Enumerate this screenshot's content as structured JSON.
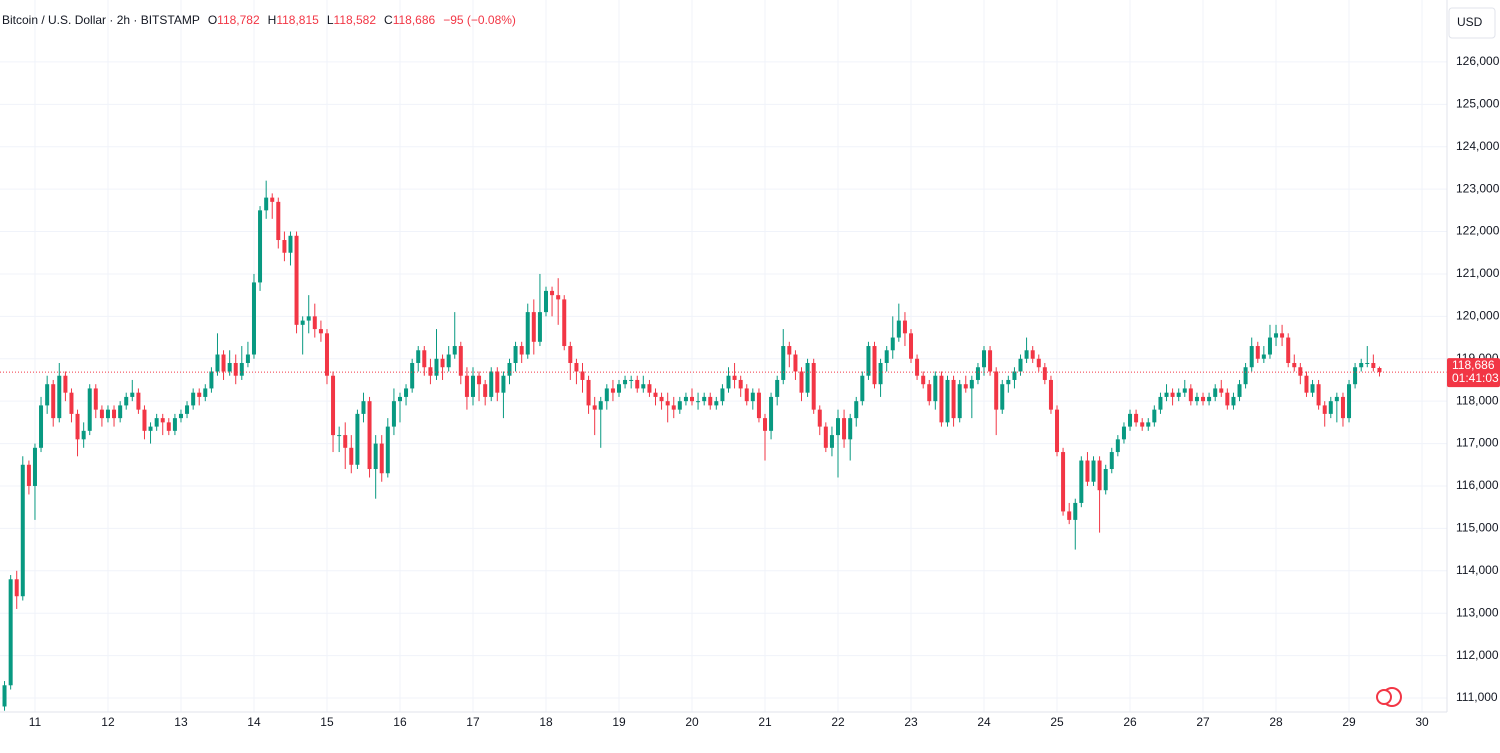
{
  "chart_data": {
    "type": "candlestick",
    "title": "Bitcoin / U.S. Dollar · 2h · BITSTAMP",
    "legend_values": [
      {
        "label": "O",
        "value": "118,782"
      },
      {
        "label": "H",
        "value": "118,815"
      },
      {
        "label": "L",
        "value": "118,582"
      },
      {
        "label": "C",
        "value": "118,686"
      }
    ],
    "change_text": "−95 (−0.08%)",
    "currency": "USD",
    "last_price": {
      "value": 118686,
      "label": "118,686",
      "countdown": "01:41:03"
    },
    "up_color": "#089981",
    "down_color": "#f23645",
    "grid": true,
    "xlim": [
      10.521,
      30.342
    ],
    "xticks": [
      11,
      12,
      13,
      14,
      15,
      16,
      17,
      18,
      19,
      20,
      21,
      22,
      23,
      24,
      25,
      26,
      27,
      28,
      29,
      30
    ],
    "ylim": [
      110670,
      127460
    ],
    "yticks": [
      {
        "value": 111000,
        "label": "111,000"
      },
      {
        "value": 112000,
        "label": "112,000"
      },
      {
        "value": 113000,
        "label": "113,000"
      },
      {
        "value": 114000,
        "label": "114,000"
      },
      {
        "value": 115000,
        "label": "115,000"
      },
      {
        "value": 116000,
        "label": "116,000"
      },
      {
        "value": 117000,
        "label": "117,000"
      },
      {
        "value": 118000,
        "label": "118,000"
      },
      {
        "value": 119000,
        "label": "119,000"
      },
      {
        "value": 120000,
        "label": "120,000"
      },
      {
        "value": 121000,
        "label": "121,000"
      },
      {
        "value": 122000,
        "label": "122,000"
      },
      {
        "value": 123000,
        "label": "123,000"
      },
      {
        "value": 124000,
        "label": "124,000"
      },
      {
        "value": 125000,
        "label": "125,000"
      },
      {
        "value": 126000,
        "label": "126,000"
      }
    ],
    "x": [
      10.583,
      10.667,
      10.75,
      10.833,
      10.917,
      11,
      11.083,
      11.167,
      11.25,
      11.333,
      11.417,
      11.5,
      11.583,
      11.667,
      11.75,
      11.833,
      11.917,
      12,
      12.083,
      12.167,
      12.25,
      12.333,
      12.417,
      12.5,
      12.583,
      12.667,
      12.75,
      12.833,
      12.917,
      13,
      13.083,
      13.167,
      13.25,
      13.333,
      13.417,
      13.5,
      13.583,
      13.667,
      13.75,
      13.833,
      13.917,
      14,
      14.083,
      14.167,
      14.25,
      14.333,
      14.417,
      14.5,
      14.583,
      14.667,
      14.75,
      14.833,
      14.917,
      15,
      15.083,
      15.167,
      15.25,
      15.333,
      15.417,
      15.5,
      15.583,
      15.667,
      15.75,
      15.833,
      15.917,
      16,
      16.083,
      16.167,
      16.25,
      16.333,
      16.417,
      16.5,
      16.583,
      16.667,
      16.75,
      16.833,
      16.917,
      17,
      17.083,
      17.167,
      17.25,
      17.333,
      17.417,
      17.5,
      17.583,
      17.667,
      17.75,
      17.833,
      17.917,
      18,
      18.083,
      18.167,
      18.25,
      18.333,
      18.417,
      18.5,
      18.583,
      18.667,
      18.75,
      18.833,
      18.917,
      19,
      19.083,
      19.167,
      19.25,
      19.333,
      19.417,
      19.5,
      19.583,
      19.667,
      19.75,
      19.833,
      19.917,
      20,
      20.083,
      20.167,
      20.25,
      20.333,
      20.417,
      20.5,
      20.583,
      20.667,
      20.75,
      20.833,
      20.917,
      21,
      21.083,
      21.167,
      21.25,
      21.333,
      21.417,
      21.5,
      21.583,
      21.667,
      21.75,
      21.833,
      21.917,
      22,
      22.083,
      22.167,
      22.25,
      22.333,
      22.417,
      22.5,
      22.583,
      22.667,
      22.75,
      22.833,
      22.917,
      23,
      23.083,
      23.167,
      23.25,
      23.333,
      23.417,
      23.5,
      23.583,
      23.667,
      23.75,
      23.833,
      23.917,
      24,
      24.083,
      24.167,
      24.25,
      24.333,
      24.417,
      24.5,
      24.583,
      24.667,
      24.75,
      24.833,
      24.917,
      25,
      25.083,
      25.167,
      25.25,
      25.333,
      25.417,
      25.5,
      25.583,
      25.667,
      25.75,
      25.833,
      25.917,
      26,
      26.083,
      26.167,
      26.25,
      26.333,
      26.417,
      26.5,
      26.583,
      26.667,
      26.75,
      26.833,
      26.917,
      27,
      27.083,
      27.167,
      27.25,
      27.333,
      27.417,
      27.5,
      27.583,
      27.667,
      27.75,
      27.833,
      27.917,
      28,
      28.083,
      28.167,
      28.25,
      28.333,
      28.417,
      28.5,
      28.583,
      28.667,
      28.75,
      28.833,
      28.917,
      29,
      29.083,
      29.167,
      29.25,
      29.333,
      29.417
    ],
    "open": [
      110800,
      111300,
      113800,
      113400,
      116500,
      116000,
      116900,
      117900,
      118400,
      117600,
      118600,
      118200,
      117700,
      117100,
      117300,
      118300,
      117800,
      117600,
      117800,
      117600,
      117900,
      118100,
      118200,
      117800,
      117300,
      117400,
      117600,
      117500,
      117300,
      117600,
      117700,
      117900,
      118200,
      118100,
      118300,
      118700,
      119100,
      118700,
      118900,
      118600,
      118900,
      119100,
      120800,
      122500,
      122800,
      122700,
      121800,
      121500,
      121900,
      119800,
      119900,
      120000,
      119700,
      119600,
      118600,
      117200,
      117200,
      116900,
      116500,
      117700,
      118000,
      116400,
      117000,
      116300,
      117400,
      118000,
      118100,
      118300,
      118900,
      119200,
      118800,
      118600,
      119000,
      118800,
      119100,
      119300,
      118600,
      118100,
      118600,
      118400,
      118100,
      118700,
      118200,
      118600,
      118900,
      119300,
      119100,
      120100,
      119400,
      120100,
      120600,
      120500,
      120400,
      119300,
      118900,
      118700,
      118500,
      117900,
      117800,
      118000,
      118300,
      118200,
      118400,
      118500,
      118500,
      118300,
      118400,
      118200,
      118100,
      118000,
      117900,
      117800,
      118000,
      118100,
      118000,
      118000,
      118100,
      117900,
      118000,
      118300,
      118600,
      118500,
      118300,
      118000,
      118200,
      117600,
      117300,
      118100,
      118500,
      119300,
      119100,
      118700,
      118200,
      118900,
      117800,
      117400,
      116900,
      117200,
      117600,
      117100,
      117600,
      118000,
      118600,
      119300,
      118400,
      118900,
      119200,
      119500,
      119900,
      119600,
      119000,
      118600,
      118400,
      118000,
      118600,
      117500,
      118500,
      117600,
      118400,
      118300,
      118500,
      118800,
      119200,
      118700,
      117800,
      118400,
      118500,
      118700,
      119000,
      119200,
      119000,
      118800,
      118500,
      117800,
      116800,
      115400,
      115200,
      115600,
      116600,
      116100,
      116600,
      115900,
      116400,
      116800,
      117100,
      117400,
      117700,
      117500,
      117400,
      117500,
      117800,
      118100,
      118200,
      118100,
      118200,
      118300,
      118000,
      118100,
      118000,
      118100,
      118300,
      118200,
      117900,
      118100,
      118400,
      118800,
      119300,
      119000,
      119100,
      119500,
      119600,
      119500,
      118900,
      118800,
      118600,
      118200,
      118400,
      117900,
      117700,
      118000,
      118100,
      117600,
      118400,
      118800,
      118900,
      118900,
      118782
    ],
    "high": [
      111400,
      113900,
      114000,
      116700,
      116600,
      117000,
      118100,
      118600,
      118500,
      118900,
      118700,
      118300,
      117800,
      117500,
      118400,
      118400,
      117900,
      117900,
      117900,
      118000,
      118200,
      118500,
      118300,
      117900,
      117500,
      117700,
      117700,
      117600,
      117700,
      117800,
      118000,
      118300,
      118300,
      118400,
      118800,
      119600,
      119200,
      119200,
      119100,
      119300,
      119400,
      121000,
      122600,
      123200,
      122900,
      122800,
      122000,
      122000,
      122000,
      120000,
      120500,
      120300,
      119900,
      119700,
      118700,
      117400,
      117500,
      117200,
      117800,
      118200,
      118100,
      117200,
      117200,
      117600,
      118300,
      118200,
      118400,
      119000,
      119300,
      119300,
      119000,
      119700,
      119100,
      119300,
      120100,
      119400,
      118800,
      118800,
      118700,
      118500,
      118800,
      118800,
      118700,
      119000,
      119400,
      119400,
      120300,
      120400,
      121000,
      120700,
      120700,
      120900,
      120500,
      119400,
      119000,
      118900,
      118600,
      118100,
      118100,
      118400,
      118500,
      118500,
      118600,
      118600,
      118600,
      118600,
      118500,
      118300,
      118200,
      118200,
      118100,
      118100,
      118200,
      118300,
      118200,
      118200,
      118200,
      118100,
      118400,
      118800,
      118900,
      118600,
      118400,
      118300,
      118300,
      117700,
      118200,
      118600,
      119700,
      119400,
      119200,
      118800,
      119000,
      119000,
      117900,
      117500,
      117400,
      117800,
      117800,
      117700,
      118100,
      118700,
      119400,
      119400,
      119000,
      119300,
      120000,
      120300,
      120100,
      119700,
      119100,
      118700,
      118500,
      118700,
      118700,
      118600,
      118600,
      118500,
      118600,
      118600,
      118900,
      119300,
      119300,
      118800,
      118500,
      118600,
      118800,
      119100,
      119500,
      119300,
      119100,
      118900,
      118600,
      117900,
      116900,
      115600,
      115700,
      116700,
      116800,
      116700,
      116700,
      116500,
      116900,
      117200,
      117500,
      117800,
      117800,
      117600,
      117600,
      117900,
      118200,
      118400,
      118300,
      118300,
      118500,
      118400,
      118200,
      118200,
      118200,
      118400,
      118500,
      118300,
      118200,
      118500,
      118900,
      119500,
      119400,
      119300,
      119800,
      119800,
      119800,
      119600,
      119100,
      118900,
      118700,
      118500,
      118500,
      118000,
      118100,
      118200,
      118200,
      118500,
      118900,
      119000,
      119300,
      119100,
      118815
    ],
    "low": [
      110700,
      111200,
      113100,
      113300,
      115800,
      115200,
      116800,
      117700,
      117400,
      117500,
      118000,
      117500,
      116700,
      116900,
      117200,
      117600,
      117400,
      117500,
      117400,
      117500,
      117800,
      118000,
      117700,
      117100,
      117000,
      117300,
      117200,
      117200,
      117200,
      117500,
      117600,
      117800,
      117900,
      118000,
      118200,
      118600,
      118500,
      118600,
      118400,
      118500,
      118800,
      119000,
      120600,
      122300,
      122300,
      121600,
      121300,
      121200,
      119600,
      119100,
      119600,
      119500,
      119400,
      118400,
      116800,
      116800,
      116400,
      116300,
      116400,
      117500,
      116200,
      115700,
      116100,
      116200,
      117200,
      117500,
      117900,
      118200,
      118700,
      118600,
      118400,
      118500,
      118500,
      118700,
      119000,
      118400,
      117800,
      117900,
      118000,
      117900,
      118000,
      118000,
      117600,
      118400,
      118700,
      118900,
      119000,
      119100,
      119300,
      120000,
      120000,
      119800,
      119200,
      118500,
      118400,
      118200,
      117700,
      117200,
      116900,
      117800,
      118000,
      118100,
      118300,
      118300,
      118200,
      118200,
      118100,
      117900,
      117800,
      117500,
      117600,
      117700,
      117900,
      117900,
      117800,
      117900,
      117800,
      117800,
      117900,
      118200,
      118300,
      118100,
      117900,
      117800,
      117500,
      116600,
      117100,
      117900,
      118400,
      118800,
      118500,
      118000,
      118100,
      117700,
      117200,
      116800,
      116700,
      116200,
      116900,
      116600,
      117400,
      117900,
      118500,
      118300,
      118100,
      118700,
      119000,
      119400,
      119300,
      118900,
      118500,
      118300,
      117900,
      117800,
      117400,
      117400,
      117400,
      117500,
      118200,
      117600,
      118400,
      118600,
      118600,
      117200,
      117700,
      118200,
      118300,
      118600,
      118900,
      118900,
      118700,
      118400,
      117700,
      116700,
      115300,
      115100,
      114500,
      115500,
      116000,
      116000,
      114900,
      115800,
      116300,
      116700,
      117000,
      117300,
      117400,
      117300,
      117300,
      117400,
      117700,
      118000,
      117900,
      118000,
      118100,
      117900,
      117900,
      117900,
      117900,
      118000,
      118100,
      117800,
      117800,
      118000,
      118300,
      118700,
      118900,
      118900,
      119000,
      119300,
      119300,
      118800,
      118700,
      118400,
      118100,
      118100,
      117800,
      117400,
      117600,
      117500,
      117400,
      117500,
      118300,
      118700,
      118800,
      118700,
      118582
    ],
    "close": [
      111300,
      113800,
      113400,
      116500,
      116000,
      116900,
      117900,
      118400,
      117600,
      118600,
      118200,
      117700,
      117100,
      117300,
      118300,
      117800,
      117600,
      117800,
      117600,
      117900,
      118100,
      118200,
      117800,
      117300,
      117400,
      117600,
      117500,
      117300,
      117600,
      117700,
      117900,
      118200,
      118100,
      118300,
      118700,
      119100,
      118700,
      118900,
      118600,
      118900,
      119100,
      120800,
      122500,
      122800,
      122700,
      121800,
      121500,
      121900,
      119800,
      119900,
      120000,
      119700,
      119600,
      118600,
      117200,
      117200,
      116900,
      116500,
      117700,
      118000,
      116400,
      117000,
      116300,
      117400,
      118000,
      118100,
      118300,
      118900,
      119200,
      118800,
      118600,
      119000,
      118800,
      119100,
      119300,
      118600,
      118100,
      118600,
      118400,
      118100,
      118700,
      118200,
      118600,
      118900,
      119300,
      119100,
      120100,
      119400,
      120100,
      120600,
      120500,
      120400,
      119300,
      118900,
      118700,
      118500,
      117900,
      117800,
      118000,
      118300,
      118200,
      118400,
      118500,
      118500,
      118300,
      118400,
      118200,
      118100,
      118000,
      117900,
      117800,
      118000,
      118100,
      118000,
      118000,
      118100,
      117900,
      118000,
      118300,
      118600,
      118500,
      118300,
      118000,
      118200,
      117600,
      117300,
      118100,
      118500,
      119300,
      119100,
      118700,
      118200,
      118900,
      117800,
      117400,
      116900,
      117200,
      117600,
      117100,
      117600,
      118000,
      118600,
      119300,
      118400,
      118900,
      119200,
      119500,
      119900,
      119600,
      119000,
      118600,
      118400,
      118000,
      118600,
      117500,
      118500,
      117600,
      118400,
      118300,
      118500,
      118800,
      119200,
      118700,
      117800,
      118400,
      118500,
      118700,
      119000,
      119200,
      119000,
      118800,
      118500,
      117800,
      116800,
      115400,
      115200,
      115600,
      116600,
      116100,
      116600,
      115900,
      116400,
      116800,
      117100,
      117400,
      117700,
      117500,
      117400,
      117500,
      117800,
      118100,
      118200,
      118100,
      118200,
      118300,
      118000,
      118100,
      118000,
      118100,
      118300,
      118200,
      117900,
      118100,
      118400,
      118800,
      119300,
      119000,
      119100,
      119500,
      119600,
      119500,
      118900,
      118800,
      118600,
      118200,
      118400,
      117900,
      117700,
      118000,
      118100,
      117600,
      118400,
      118800,
      118900,
      118900,
      118782,
      118686
    ]
  }
}
